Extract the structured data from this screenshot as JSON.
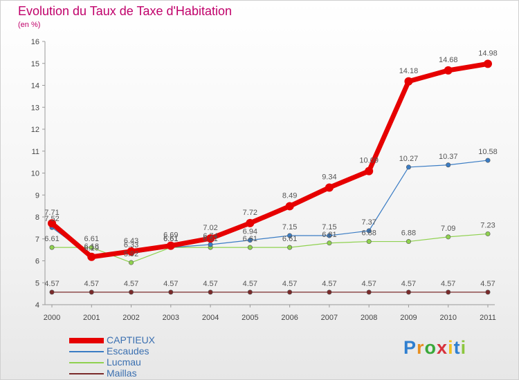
{
  "chart_data": {
    "type": "line",
    "title": "Evolution du Taux de Taxe d'Habitation",
    "subtitle": "(en %)",
    "x": [
      "2000",
      "2001",
      "2002",
      "2003",
      "2004",
      "2005",
      "2006",
      "2007",
      "2008",
      "2009",
      "2010",
      "2011"
    ],
    "ylim": [
      4,
      16
    ],
    "yticks": [
      4,
      5,
      6,
      7,
      8,
      9,
      10,
      11,
      12,
      13,
      14,
      15,
      16
    ],
    "grid": false,
    "legend_position": "bottom-left",
    "series": [
      {
        "name": "CAPTIEUX",
        "color": "#e60000",
        "values": [
          7.71,
          6.18,
          6.43,
          6.69,
          7.02,
          7.72,
          8.49,
          9.34,
          10.09,
          14.18,
          14.68,
          14.98
        ],
        "labels": [
          "7.71",
          "6.18",
          "6.43",
          "6.69",
          "7.02",
          "7.72",
          "8.49",
          "9.34",
          "10.09",
          "14.18",
          "14.68",
          "14.98"
        ]
      },
      {
        "name": "Escaudes",
        "color": "#3a7cc4",
        "values": [
          7.52,
          6.19,
          6.33,
          6.61,
          6.74,
          6.94,
          7.15,
          7.15,
          7.37,
          10.27,
          10.37,
          10.58
        ],
        "labels": [
          "7.52",
          "6.19",
          "6.33",
          "6.61",
          "6.74",
          "6.94",
          "7.15",
          "7.15",
          "7.37",
          "10.27",
          "10.37",
          "10.58"
        ]
      },
      {
        "name": "Lucmau",
        "color": "#8fd14f",
        "values": [
          6.61,
          6.61,
          5.92,
          6.61,
          6.61,
          6.61,
          6.61,
          6.81,
          6.88,
          6.88,
          7.09,
          7.23
        ],
        "labels": [
          "6.61",
          "6.61",
          "5.92",
          "6.61",
          "6.61",
          "6.61",
          "6.61",
          "6.81",
          "6.88",
          "6.88",
          "7.09",
          "7.23"
        ]
      },
      {
        "name": "Maillas",
        "color": "#7a2a2a",
        "values": [
          4.57,
          4.57,
          4.57,
          4.57,
          4.57,
          4.57,
          4.57,
          4.57,
          4.57,
          4.57,
          4.57,
          4.57
        ],
        "labels": [
          "4.57",
          "4.57",
          "4.57",
          "4.57",
          "4.57",
          "4.57",
          "4.57",
          "4.57",
          "4.57",
          "4.57",
          "4.57",
          "4.57"
        ]
      }
    ]
  },
  "brand": {
    "letters": [
      "P",
      "r",
      "o",
      "x",
      "i",
      "t",
      "i"
    ],
    "colors": [
      "#2f7fd0",
      "#e88f20",
      "#3aa83a",
      "#d8323c",
      "#f0c020",
      "#2f7fd0",
      "#8cc63e"
    ]
  }
}
